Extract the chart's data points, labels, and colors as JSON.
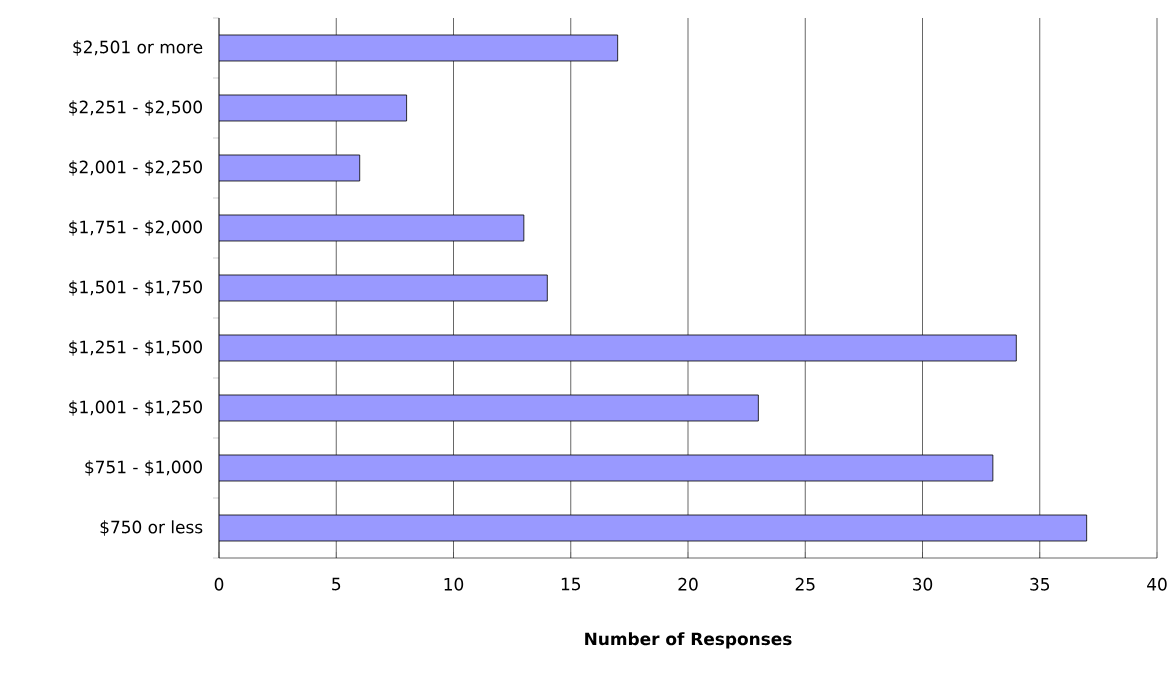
{
  "chart_data": {
    "type": "bar",
    "orientation": "horizontal",
    "xlabel": "Number of Responses",
    "categories": [
      "$2,501 or more",
      "$2,251 - $2,500",
      "$2,001 - $2,250",
      "$1,751 - $2,000",
      "$1,501 - $1,750",
      "$1,251 - $1,500",
      "$1,001 - $1,250",
      "$751 - $1,000",
      "$750 or less"
    ],
    "values": [
      17,
      8,
      6,
      13,
      14,
      34,
      23,
      33,
      37
    ],
    "color": "#9999ff",
    "xlim": [
      0,
      40
    ],
    "xticks": [
      0,
      5,
      10,
      15,
      20,
      25,
      30,
      35,
      40
    ],
    "grid": "x"
  }
}
